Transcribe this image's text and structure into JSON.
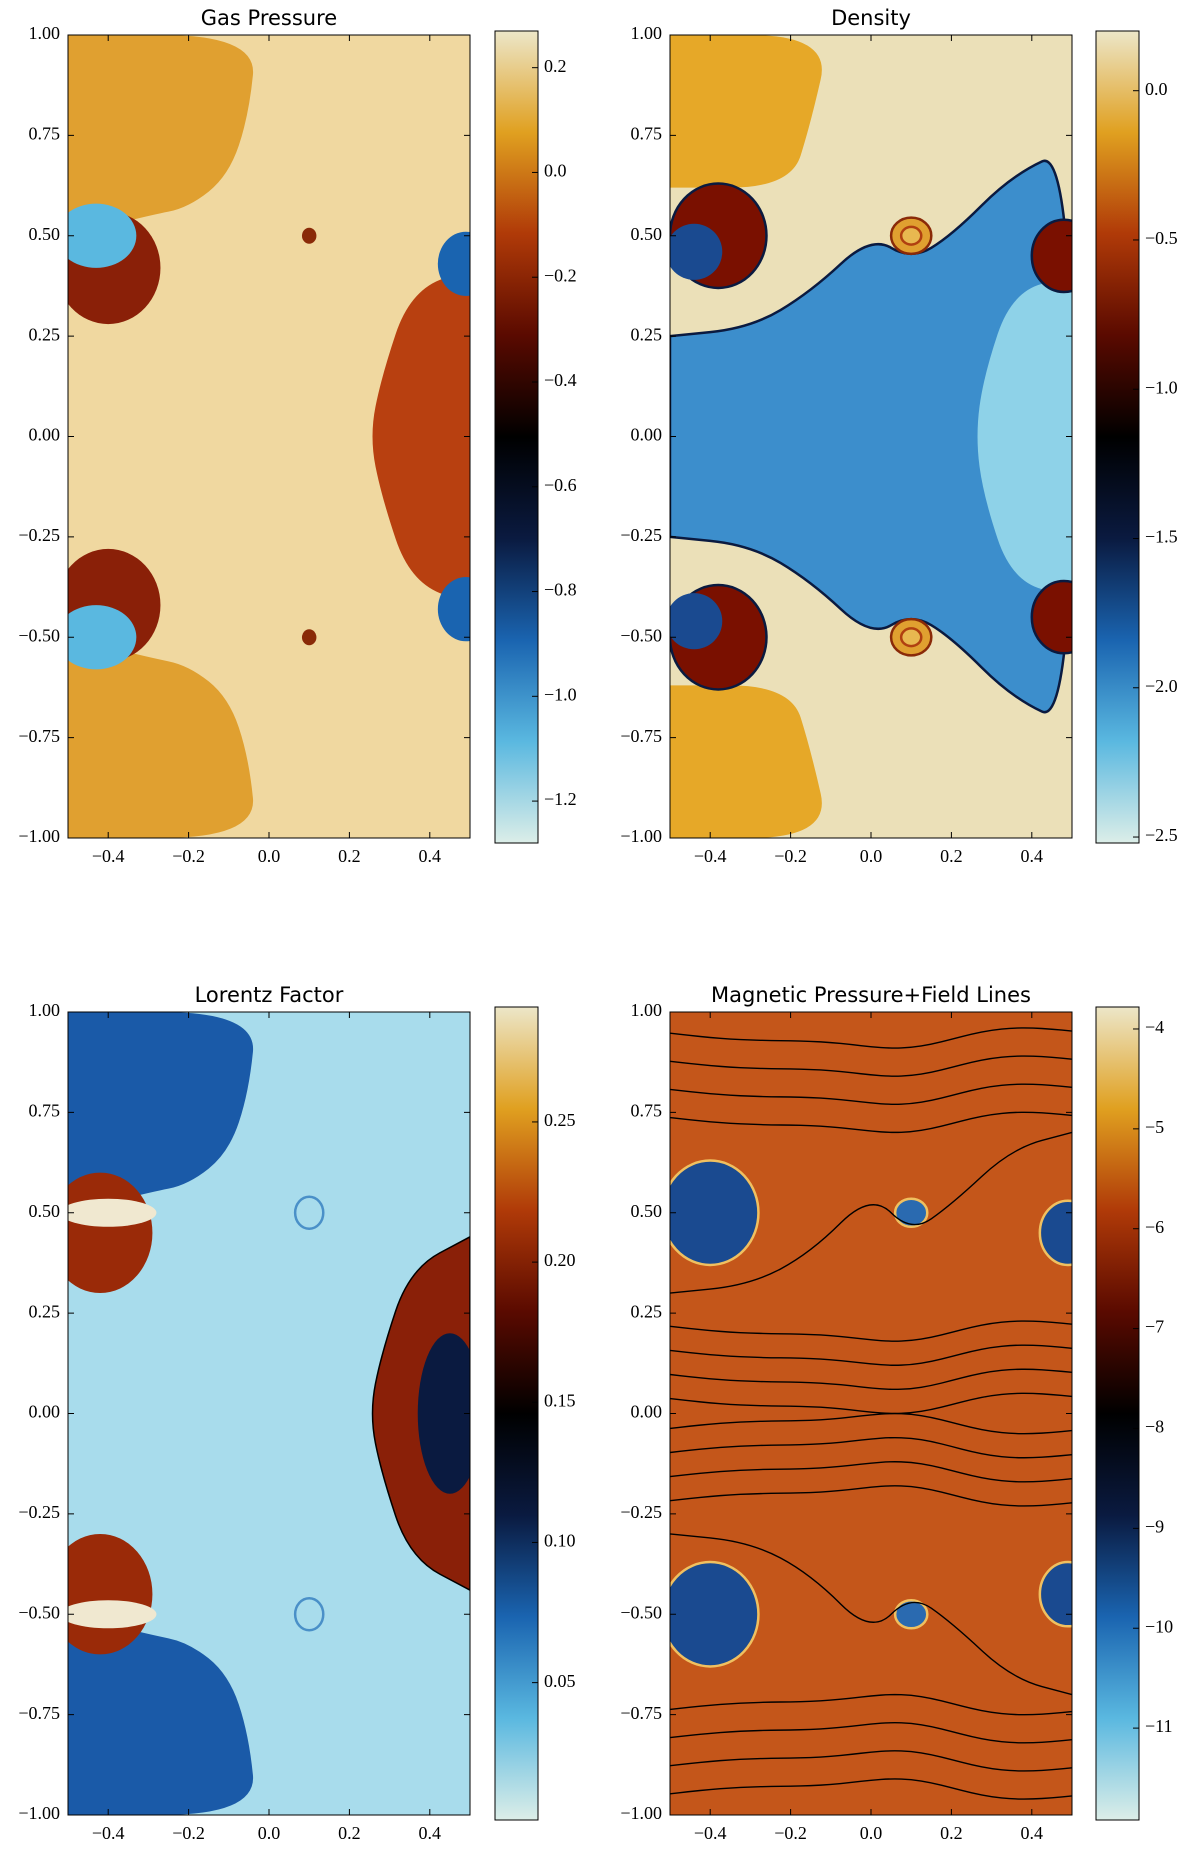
{
  "chart_data": [
    {
      "type": "heatmap",
      "title": "Gas Pressure",
      "xlim": [
        -0.5,
        0.5
      ],
      "ylim": [
        -1,
        1
      ],
      "xticks": [
        {
          "value": -0.4,
          "label": "−0.4"
        },
        {
          "value": -0.2,
          "label": "−0.2"
        },
        {
          "value": 0,
          "label": "0.0"
        },
        0.2,
        0.4
      ],
      "yticks": [
        {
          "value": 1,
          "label": "1.00"
        },
        0.75,
        {
          "value": 0.5,
          "label": "0.50"
        },
        0.25,
        {
          "value": 0,
          "label": "0.00"
        },
        {
          "value": -0.25,
          "label": "−0.25"
        },
        {
          "value": -0.5,
          "label": "−0.50"
        },
        {
          "value": -0.75,
          "label": "−0.75"
        },
        {
          "value": -1,
          "label": "−1.00"
        }
      ],
      "colorbar": {
        "lim": [
          -1.28,
          0.27
        ],
        "ticks": [
          0.2,
          {
            "value": 0,
            "label": "0.0"
          },
          {
            "value": -0.2,
            "label": "−0.2"
          },
          {
            "value": -0.4,
            "label": "−0.4"
          },
          {
            "value": -0.6,
            "label": "−0.6"
          },
          {
            "value": -0.8,
            "label": "−0.8"
          },
          {
            "value": -1.0,
            "label": "−1.0"
          },
          {
            "value": -1.2,
            "label": "−1.2"
          }
        ]
      },
      "colormap": [
        "#dceee8",
        "#5ab8e0",
        "#1a64b0",
        "#0a1a40",
        "#000000",
        "#5a0a00",
        "#b03a08",
        "#e0a020",
        "#ece6c8"
      ]
    },
    {
      "type": "heatmap",
      "title": "Density",
      "xlim": [
        -0.5,
        0.5
      ],
      "ylim": [
        -1,
        1
      ],
      "xticks": [
        {
          "value": -0.4,
          "label": "−0.4"
        },
        {
          "value": -0.2,
          "label": "−0.2"
        },
        {
          "value": 0,
          "label": "0.0"
        },
        0.2,
        0.4
      ],
      "yticks": [
        {
          "value": 1,
          "label": "1.00"
        },
        0.75,
        {
          "value": 0.5,
          "label": "0.50"
        },
        0.25,
        {
          "value": 0,
          "label": "0.00"
        },
        {
          "value": -0.25,
          "label": "−0.25"
        },
        {
          "value": -0.5,
          "label": "−0.50"
        },
        {
          "value": -0.75,
          "label": "−0.75"
        },
        {
          "value": -1,
          "label": "−1.00"
        }
      ],
      "colorbar": {
        "lim": [
          -2.52,
          0.2
        ],
        "ticks": [
          {
            "value": 0,
            "label": "0.0"
          },
          {
            "value": -0.5,
            "label": "−0.5"
          },
          {
            "value": -1.0,
            "label": "−1.0"
          },
          {
            "value": -1.5,
            "label": "−1.5"
          },
          {
            "value": -2.0,
            "label": "−2.0"
          },
          {
            "value": -2.5,
            "label": "−2.5"
          }
        ]
      },
      "colormap": [
        "#dceee8",
        "#5ab8e0",
        "#1a64b0",
        "#0a1a40",
        "#000000",
        "#5a0a00",
        "#b03a08",
        "#e0a020",
        "#ece6c8"
      ]
    },
    {
      "type": "heatmap",
      "title": "Lorentz Factor",
      "xlim": [
        -0.5,
        0.5
      ],
      "ylim": [
        -1,
        1
      ],
      "xticks": [
        {
          "value": -0.4,
          "label": "−0.4"
        },
        {
          "value": -0.2,
          "label": "−0.2"
        },
        {
          "value": 0,
          "label": "0.0"
        },
        0.2,
        0.4
      ],
      "yticks": [
        {
          "value": 1,
          "label": "1.00"
        },
        0.75,
        {
          "value": 0.5,
          "label": "0.50"
        },
        0.25,
        {
          "value": 0,
          "label": "0.00"
        },
        {
          "value": -0.25,
          "label": "−0.25"
        },
        {
          "value": -0.5,
          "label": "−0.50"
        },
        {
          "value": -0.75,
          "label": "−0.75"
        },
        {
          "value": -1,
          "label": "−1.00"
        }
      ],
      "colorbar": {
        "lim": [
          0.001,
          0.291
        ],
        "ticks": [
          0.25,
          {
            "value": 0.2,
            "label": "0.20"
          },
          0.15,
          {
            "value": 0.1,
            "label": "0.10"
          },
          0.05
        ]
      },
      "colormap": [
        "#dceee8",
        "#5ab8e0",
        "#1a64b0",
        "#0a1a40",
        "#000000",
        "#5a0a00",
        "#b03a08",
        "#e0a020",
        "#ece6c8"
      ]
    },
    {
      "type": "heatmap",
      "title": "Magnetic Pressure+Field Lines",
      "xlim": [
        -0.5,
        0.5
      ],
      "ylim": [
        -1,
        1
      ],
      "xticks": [
        {
          "value": -0.4,
          "label": "−0.4"
        },
        {
          "value": -0.2,
          "label": "−0.2"
        },
        {
          "value": 0,
          "label": "0.0"
        },
        0.2,
        0.4
      ],
      "yticks": [
        {
          "value": 1,
          "label": "1.00"
        },
        0.75,
        {
          "value": 0.5,
          "label": "0.50"
        },
        0.25,
        {
          "value": 0,
          "label": "0.00"
        },
        {
          "value": -0.25,
          "label": "−0.25"
        },
        {
          "value": -0.5,
          "label": "−0.50"
        },
        {
          "value": -0.75,
          "label": "−0.75"
        },
        {
          "value": -1,
          "label": "−1.00"
        }
      ],
      "colorbar": {
        "lim": [
          -11.92,
          -3.78
        ],
        "ticks": [
          {
            "value": -4,
            "label": "−4"
          },
          {
            "value": -5,
            "label": "−5"
          },
          {
            "value": -6,
            "label": "−6"
          },
          {
            "value": -7,
            "label": "−7"
          },
          {
            "value": -8,
            "label": "−8"
          },
          {
            "value": -9,
            "label": "−9"
          },
          {
            "value": -10,
            "label": "−10"
          },
          {
            "value": -11,
            "label": "−11"
          }
        ]
      },
      "colormap": [
        "#dceee8",
        "#5ab8e0",
        "#1a64b0",
        "#0a1a40",
        "#000000",
        "#5a0a00",
        "#b03a08",
        "#e0a020",
        "#ece6c8"
      ]
    }
  ]
}
